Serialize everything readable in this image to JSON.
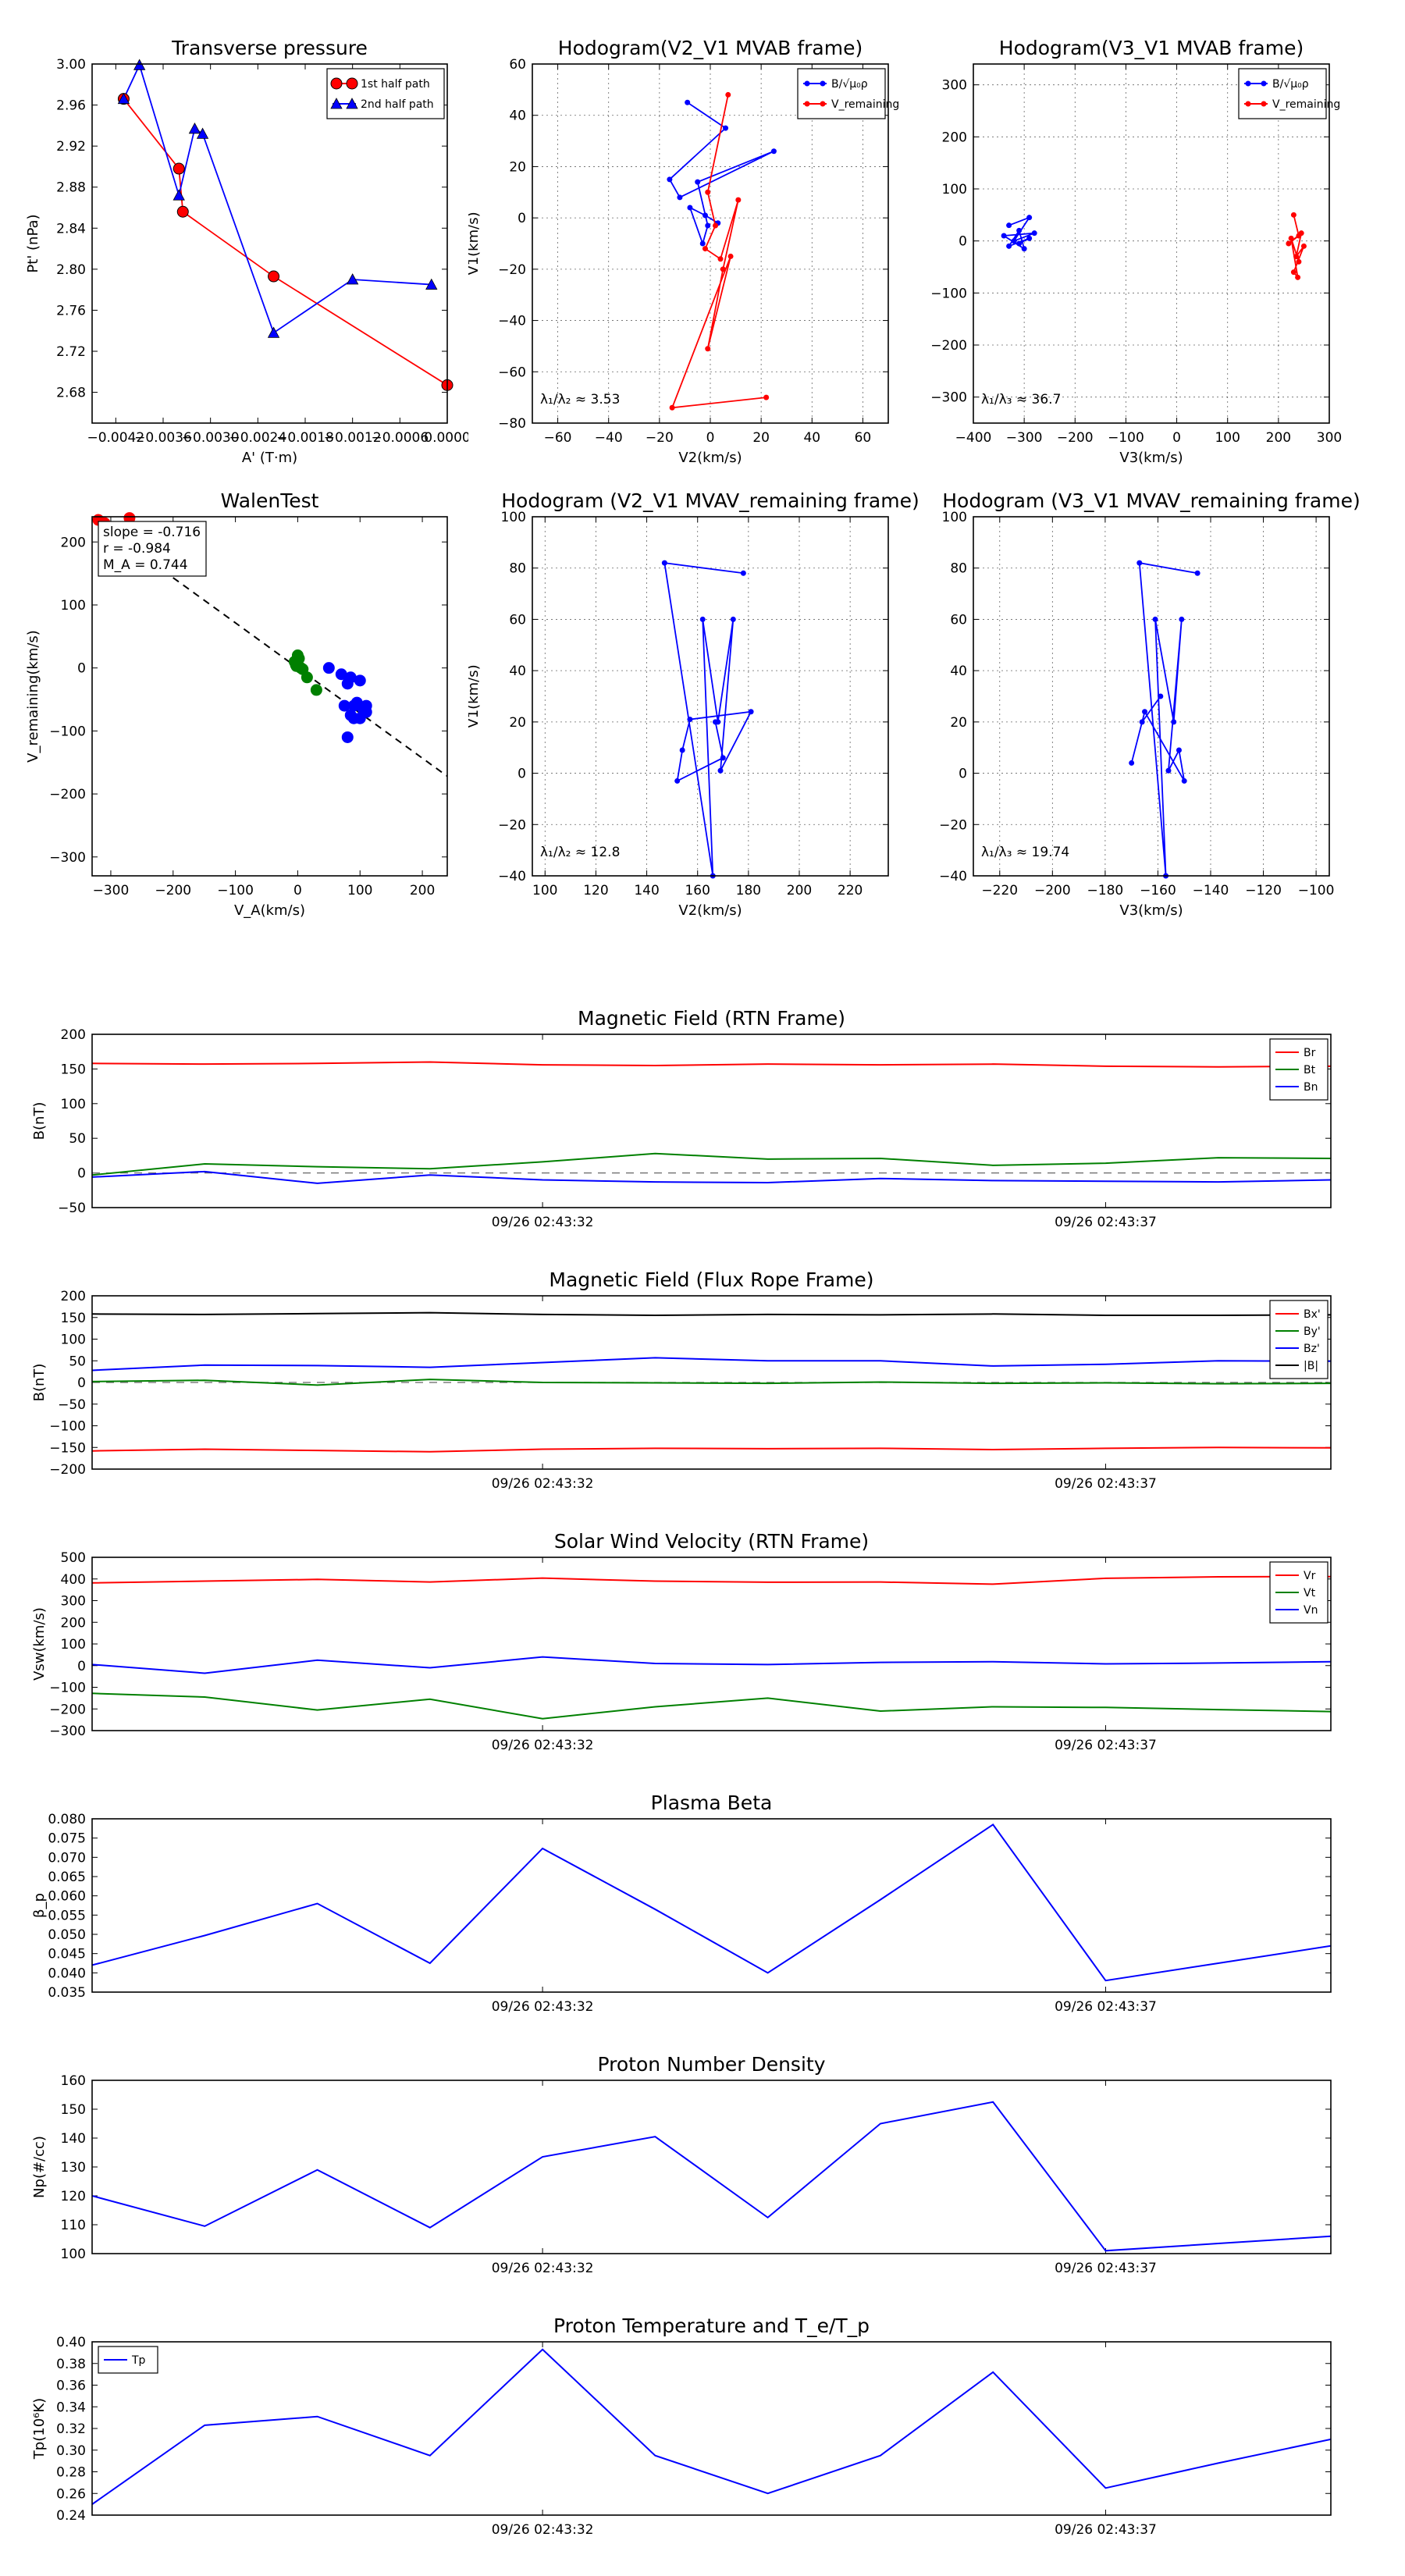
{
  "chart_data": [
    {
      "id": "tp",
      "type": "line",
      "title": "Transverse pressure",
      "xlabel": "A' (T·m)",
      "ylabel": "Pt' (nPa)",
      "xlim": [
        -0.0045,
        0.0
      ],
      "ylim": [
        2.65,
        3.0
      ],
      "xticks": [
        -0.0042,
        -0.0036,
        -0.003,
        -0.0024,
        -0.0018,
        -0.0012,
        -0.0006,
        0.0
      ],
      "xtick_labels": [
        "−0.0042",
        "−0.0036",
        "−0.0030",
        "−0.0024",
        "−0.0018",
        "−0.0012",
        "−0.0006",
        "0.0000"
      ],
      "yticks": [
        2.68,
        2.72,
        2.76,
        2.8,
        2.84,
        2.88,
        2.92,
        2.96,
        3.0
      ],
      "ytick_labels": [
        "2.68",
        "2.72",
        "2.76",
        "2.80",
        "2.84",
        "2.88",
        "2.92",
        "2.96",
        "3.00"
      ],
      "grid": false,
      "legend_position": "top-right",
      "series": [
        {
          "name": "1st half path",
          "color": "#ff0000",
          "marker": "circle",
          "x": [
            -0.0041,
            -0.0034,
            -0.00335,
            -0.0022,
            0.0
          ],
          "y": [
            2.966,
            2.898,
            2.856,
            2.793,
            2.687
          ]
        },
        {
          "name": "2nd half path",
          "color": "#0000ff",
          "marker": "triangle",
          "x": [
            -0.0041,
            -0.0039,
            -0.0034,
            -0.0032,
            -0.0031,
            -0.0022,
            -0.0012,
            -0.0002
          ],
          "y": [
            2.966,
            2.999,
            2.872,
            2.937,
            2.932,
            2.738,
            2.79,
            2.785
          ]
        }
      ]
    },
    {
      "id": "h1",
      "type": "line",
      "title": "Hodogram(V2_V1 MVAB frame)",
      "xlabel": "V2(km/s)",
      "ylabel": "V1(km/s)",
      "xlim": [
        -70,
        70
      ],
      "ylim": [
        -80,
        60
      ],
      "xticks": [
        -60,
        -40,
        -20,
        0,
        20,
        40,
        60
      ],
      "xtick_labels": [
        "−60",
        "−40",
        "−20",
        "0",
        "20",
        "40",
        "60"
      ],
      "yticks": [
        -80,
        -60,
        -40,
        -20,
        0,
        20,
        40,
        60
      ],
      "ytick_labels": [
        "−80",
        "−60",
        "−40",
        "−20",
        "0",
        "20",
        "40",
        "60"
      ],
      "grid": true,
      "legend_position": "top-right",
      "annotation": "λ₁/λ₂ ≈ 3.53",
      "series": [
        {
          "name": "B/√μ₀ρ",
          "color": "#0000ff",
          "marker": "dot",
          "x": [
            -9,
            6,
            -16,
            -12,
            25,
            -5,
            -1,
            -3,
            -8,
            -2,
            3
          ],
          "y": [
            45,
            35,
            15,
            8,
            26,
            14,
            -3,
            -10,
            4,
            1,
            -2
          ]
        },
        {
          "name": "V_remaining",
          "color": "#ff0000",
          "marker": "dot",
          "x": [
            7,
            -1,
            2,
            -2,
            4,
            11,
            5,
            -1,
            8,
            -15,
            22
          ],
          "y": [
            48,
            10,
            -3,
            -12,
            -16,
            7,
            -20,
            -51,
            -15,
            -74,
            -70
          ]
        }
      ]
    },
    {
      "id": "h2",
      "type": "line",
      "title": "Hodogram(V3_V1 MVAB frame)",
      "xlabel": "V3(km/s)",
      "ylabel": "V1(km/s)",
      "xlim": [
        -400,
        300
      ],
      "ylim": [
        -350,
        340
      ],
      "xticks": [
        -400,
        -300,
        -200,
        -100,
        0,
        100,
        200,
        300
      ],
      "xtick_labels": [
        "−400",
        "−300",
        "−200",
        "−100",
        "0",
        "100",
        "200",
        "300"
      ],
      "yticks": [
        -300,
        -200,
        -100,
        0,
        100,
        200,
        300
      ],
      "ytick_labels": [
        "−300",
        "−200",
        "−100",
        "0",
        "100",
        "200",
        "300"
      ],
      "grid": true,
      "legend_position": "top-right",
      "annotation": "λ₁/λ₃ ≈ 36.7",
      "series": [
        {
          "name": "B/√μ₀ρ",
          "color": "#0000ff",
          "marker": "dot",
          "x": [
            -330,
            -290,
            -320,
            -280,
            -340,
            -300,
            -310,
            -330,
            -290,
            -310
          ],
          "y": [
            30,
            45,
            0,
            15,
            10,
            -15,
            20,
            -10,
            5,
            -5
          ]
        },
        {
          "name": "V_remaining",
          "color": "#ff0000",
          "marker": "dot",
          "x": [
            230,
            240,
            220,
            245,
            235,
            250,
            230,
            238,
            225,
            240
          ],
          "y": [
            50,
            10,
            -5,
            15,
            -30,
            -10,
            -60,
            -70,
            5,
            -40
          ]
        }
      ]
    },
    {
      "id": "walen",
      "type": "scatter",
      "title": "WalenTest",
      "xlabel": "V_A(km/s)",
      "ylabel": "V_remaining(km/s)",
      "xlim": [
        -330,
        240
      ],
      "ylim": [
        -330,
        240
      ],
      "xticks": [
        -300,
        -200,
        -100,
        0,
        100,
        200
      ],
      "xtick_labels": [
        "−300",
        "−200",
        "−100",
        "0",
        "100",
        "200"
      ],
      "yticks": [
        -300,
        -200,
        -100,
        0,
        100,
        200
      ],
      "ytick_labels": [
        "−300",
        "−200",
        "−100",
        "0",
        "100",
        "200"
      ],
      "grid": false,
      "stats": [
        "slope = -0.716",
        "r = -0.984",
        "M_A = 0.744"
      ],
      "fit_line": {
        "slope": -0.716,
        "intercept": 0,
        "style": "dashed"
      },
      "series": [
        {
          "name": "red",
          "color": "#ff0000",
          "x": [
            -320,
            -310,
            -270
          ],
          "y": [
            235,
            230,
            238
          ]
        },
        {
          "name": "green",
          "color": "#008000",
          "x": [
            -5,
            0,
            5,
            -3,
            2,
            8,
            -2,
            15,
            30
          ],
          "y": [
            10,
            20,
            0,
            5,
            15,
            -2,
            3,
            -15,
            -35
          ]
        },
        {
          "name": "blue",
          "color": "#0000ff",
          "x": [
            50,
            70,
            80,
            90,
            100,
            110,
            75,
            85,
            95,
            105,
            80,
            90,
            100,
            110,
            85
          ],
          "y": [
            0,
            -10,
            -25,
            -60,
            -80,
            -70,
            -60,
            -75,
            -55,
            -65,
            -110,
            -80,
            -20,
            -60,
            -15
          ]
        }
      ]
    },
    {
      "id": "h3",
      "type": "line",
      "title": "Hodogram (V2_V1 MVAV_remaining frame)",
      "xlabel": "V2(km/s)",
      "ylabel": "V1(km/s)",
      "xlim": [
        95,
        235
      ],
      "ylim": [
        -40,
        100
      ],
      "xticks": [
        100,
        120,
        140,
        160,
        180,
        200,
        220
      ],
      "xtick_labels": [
        "100",
        "120",
        "140",
        "160",
        "180",
        "200",
        "220"
      ],
      "yticks": [
        -40,
        -20,
        0,
        20,
        40,
        60,
        80,
        100
      ],
      "ytick_labels": [
        "−40",
        "−20",
        "0",
        "20",
        "40",
        "60",
        "80",
        "100"
      ],
      "grid": true,
      "annotation": "λ₁/λ₂ ≈ 12.8",
      "series": [
        {
          "name": "path",
          "color": "#0000ff",
          "marker": "dot",
          "x": [
            178,
            147,
            166,
            162,
            168,
            174,
            169,
            181,
            157,
            154,
            152,
            170,
            167
          ],
          "y": [
            78,
            82,
            -40,
            60,
            20,
            60,
            1,
            24,
            21,
            9,
            -3,
            6,
            20
          ]
        }
      ]
    },
    {
      "id": "h4",
      "type": "line",
      "title": "Hodogram (V3_V1 MVAV_remaining frame)",
      "xlabel": "V3(km/s)",
      "ylabel": "V1(km/s)",
      "xlim": [
        -230,
        -95
      ],
      "ylim": [
        -40,
        100
      ],
      "xticks": [
        -220,
        -200,
        -180,
        -160,
        -140,
        -120,
        -100
      ],
      "xtick_labels": [
        "−220",
        "−200",
        "−180",
        "−160",
        "−140",
        "−120",
        "−100"
      ],
      "yticks": [
        -40,
        -20,
        0,
        20,
        40,
        60,
        80,
        100
      ],
      "ytick_labels": [
        "−40",
        "−20",
        "0",
        "20",
        "40",
        "60",
        "80",
        "100"
      ],
      "grid": true,
      "annotation": "λ₁/λ₃ ≈ 19.74",
      "series": [
        {
          "name": "path",
          "color": "#0000ff",
          "marker": "dot",
          "x": [
            -145,
            -167,
            -157,
            -161,
            -154,
            -151,
            -156,
            -152,
            -150,
            -165,
            -170,
            -166,
            -159
          ],
          "y": [
            78,
            82,
            -40,
            60,
            20,
            60,
            1,
            9,
            -3,
            24,
            4,
            20,
            30
          ]
        }
      ]
    },
    {
      "id": "ts1",
      "type": "line",
      "title": "Magnetic Field (RTN Frame)",
      "ylabel": "B(nT)",
      "ylim": [
        -50,
        200
      ],
      "yticks": [
        -50,
        0,
        50,
        100,
        150,
        200
      ],
      "ytick_labels": [
        "−50",
        "0",
        "50",
        "100",
        "150",
        "200"
      ],
      "x": [
        0,
        1,
        2,
        3,
        4,
        5,
        6,
        7,
        8,
        9,
        10,
        11
      ],
      "xticks": [
        4,
        9
      ],
      "xtick_labels": [
        "09/26 02:43:32",
        "09/26 02:43:37"
      ],
      "zero_line": true,
      "legend_position": "top-right",
      "series": [
        {
          "name": "Br",
          "color": "#ff0000",
          "values": [
            158,
            157,
            158,
            160,
            156,
            155,
            157,
            156,
            157,
            154,
            153,
            154
          ]
        },
        {
          "name": "Bt",
          "color": "#008000",
          "values": [
            -3,
            13,
            9,
            6,
            16,
            28,
            20,
            21,
            11,
            14,
            22,
            21
          ]
        },
        {
          "name": "Bn",
          "color": "#0000ff",
          "values": [
            -6,
            2,
            -15,
            -3,
            -10,
            -13,
            -14,
            -8,
            -11,
            -12,
            -13,
            -10
          ]
        }
      ]
    },
    {
      "id": "ts2",
      "type": "line",
      "title": "Magnetic Field (Flux Rope Frame)",
      "ylabel": "B(nT)",
      "ylim": [
        -200,
        200
      ],
      "yticks": [
        -200,
        -150,
        -100,
        -50,
        0,
        50,
        100,
        150,
        200
      ],
      "ytick_labels": [
        "−200",
        "−150",
        "−100",
        "−50",
        "0",
        "50",
        "100",
        "150",
        "200"
      ],
      "x": [
        0,
        1,
        2,
        3,
        4,
        5,
        6,
        7,
        8,
        9,
        10,
        11
      ],
      "xticks": [
        4,
        9
      ],
      "xtick_labels": [
        "09/26 02:43:32",
        "09/26 02:43:37"
      ],
      "zero_line": true,
      "legend_position": "top-right",
      "series": [
        {
          "name": "Bx'",
          "color": "#ff0000",
          "values": [
            -158,
            -154,
            -157,
            -160,
            -154,
            -152,
            -153,
            -152,
            -155,
            -152,
            -150,
            -151
          ]
        },
        {
          "name": "By'",
          "color": "#008000",
          "values": [
            2,
            5,
            -6,
            7,
            0,
            -1,
            -2,
            1,
            -2,
            -1,
            -3,
            -2
          ]
        },
        {
          "name": "Bz'",
          "color": "#0000ff",
          "values": [
            28,
            40,
            39,
            35,
            46,
            57,
            50,
            50,
            38,
            42,
            50,
            49
          ]
        },
        {
          "name": "|B|",
          "color": "#000000",
          "values": [
            158,
            157,
            159,
            161,
            157,
            155,
            157,
            156,
            158,
            155,
            155,
            156
          ]
        }
      ]
    },
    {
      "id": "ts3",
      "type": "line",
      "title": "Solar Wind Velocity (RTN Frame)",
      "ylabel": "Vsw(km/s)",
      "ylim": [
        -300,
        500
      ],
      "yticks": [
        -300,
        -200,
        -100,
        0,
        100,
        200,
        300,
        400,
        500
      ],
      "ytick_labels": [
        "−300",
        "−200",
        "−100",
        "0",
        "100",
        "200",
        "300",
        "400",
        "500"
      ],
      "x": [
        0,
        1,
        2,
        3,
        4,
        5,
        6,
        7,
        8,
        9,
        10,
        11
      ],
      "xticks": [
        4,
        9
      ],
      "xtick_labels": [
        "09/26 02:43:32",
        "09/26 02:43:37"
      ],
      "zero_line": false,
      "legend_position": "top-right",
      "series": [
        {
          "name": "Vr",
          "color": "#ff0000",
          "values": [
            382,
            390,
            398,
            386,
            404,
            390,
            385,
            386,
            376,
            403,
            410,
            411
          ]
        },
        {
          "name": "Vt",
          "color": "#008000",
          "values": [
            -128,
            -145,
            -205,
            -155,
            -245,
            -190,
            -150,
            -210,
            -190,
            -193,
            -203,
            -212
          ]
        },
        {
          "name": "Vn",
          "color": "#0000ff",
          "values": [
            5,
            -35,
            25,
            -10,
            40,
            10,
            5,
            15,
            18,
            8,
            12,
            18
          ]
        }
      ]
    },
    {
      "id": "ts4",
      "type": "line",
      "title": "Plasma Beta",
      "ylabel": "β_p",
      "ylim": [
        0.035,
        0.08
      ],
      "yticks": [
        0.035,
        0.04,
        0.045,
        0.05,
        0.055,
        0.06,
        0.065,
        0.07,
        0.075,
        0.08
      ],
      "ytick_labels": [
        "0.035",
        "0.040",
        "0.045",
        "0.050",
        "0.055",
        "0.060",
        "0.065",
        "0.070",
        "0.075",
        "0.080"
      ],
      "x": [
        0,
        1,
        2,
        3,
        4,
        5,
        6,
        7,
        8,
        9,
        10,
        11
      ],
      "xticks": [
        4,
        9
      ],
      "xtick_labels": [
        "09/26 02:43:32",
        "09/26 02:43:37"
      ],
      "series": [
        {
          "name": "beta",
          "color": "#0000ff",
          "values": [
            0.042,
            0.0497,
            0.058,
            0.0425,
            0.0723,
            0.0565,
            0.04,
            0.059,
            0.0785,
            0.038,
            0.0425,
            0.047
          ]
        }
      ]
    },
    {
      "id": "ts5",
      "type": "line",
      "title": "Proton Number Density",
      "ylabel": "Np(#/cc)",
      "ylim": [
        100,
        160
      ],
      "yticks": [
        100,
        110,
        120,
        130,
        140,
        150,
        160
      ],
      "ytick_labels": [
        "100",
        "110",
        "120",
        "130",
        "140",
        "150",
        "160"
      ],
      "x": [
        0,
        1,
        2,
        3,
        4,
        5,
        6,
        7,
        8,
        9,
        10,
        11
      ],
      "xticks": [
        4,
        9
      ],
      "xtick_labels": [
        "09/26 02:43:32",
        "09/26 02:43:37"
      ],
      "series": [
        {
          "name": "Np",
          "color": "#0000ff",
          "values": [
            120,
            109.5,
            129,
            109,
            133.5,
            140.5,
            112.5,
            145,
            152.5,
            101,
            103.5,
            106
          ]
        }
      ]
    },
    {
      "id": "ts6",
      "type": "line",
      "title": "Proton Temperature and T_e/T_p",
      "ylabel": "Tp(10⁶K)",
      "ylim": [
        0.24,
        0.4
      ],
      "yticks": [
        0.24,
        0.26,
        0.28,
        0.3,
        0.32,
        0.34,
        0.36,
        0.38,
        0.4
      ],
      "ytick_labels": [
        "0.24",
        "0.26",
        "0.28",
        "0.30",
        "0.32",
        "0.34",
        "0.36",
        "0.38",
        "0.40"
      ],
      "x": [
        0,
        1,
        2,
        3,
        4,
        5,
        6,
        7,
        8,
        9,
        10,
        11
      ],
      "xticks": [
        4,
        9
      ],
      "xtick_labels": [
        "09/26 02:43:32",
        "09/26 02:43:37"
      ],
      "legend_position": "top-left",
      "series": [
        {
          "name": "Tp",
          "color": "#0000ff",
          "values": [
            0.25,
            0.323,
            0.331,
            0.295,
            0.393,
            0.295,
            0.26,
            0.295,
            0.372,
            0.265,
            0.288,
            0.31
          ]
        }
      ]
    }
  ]
}
